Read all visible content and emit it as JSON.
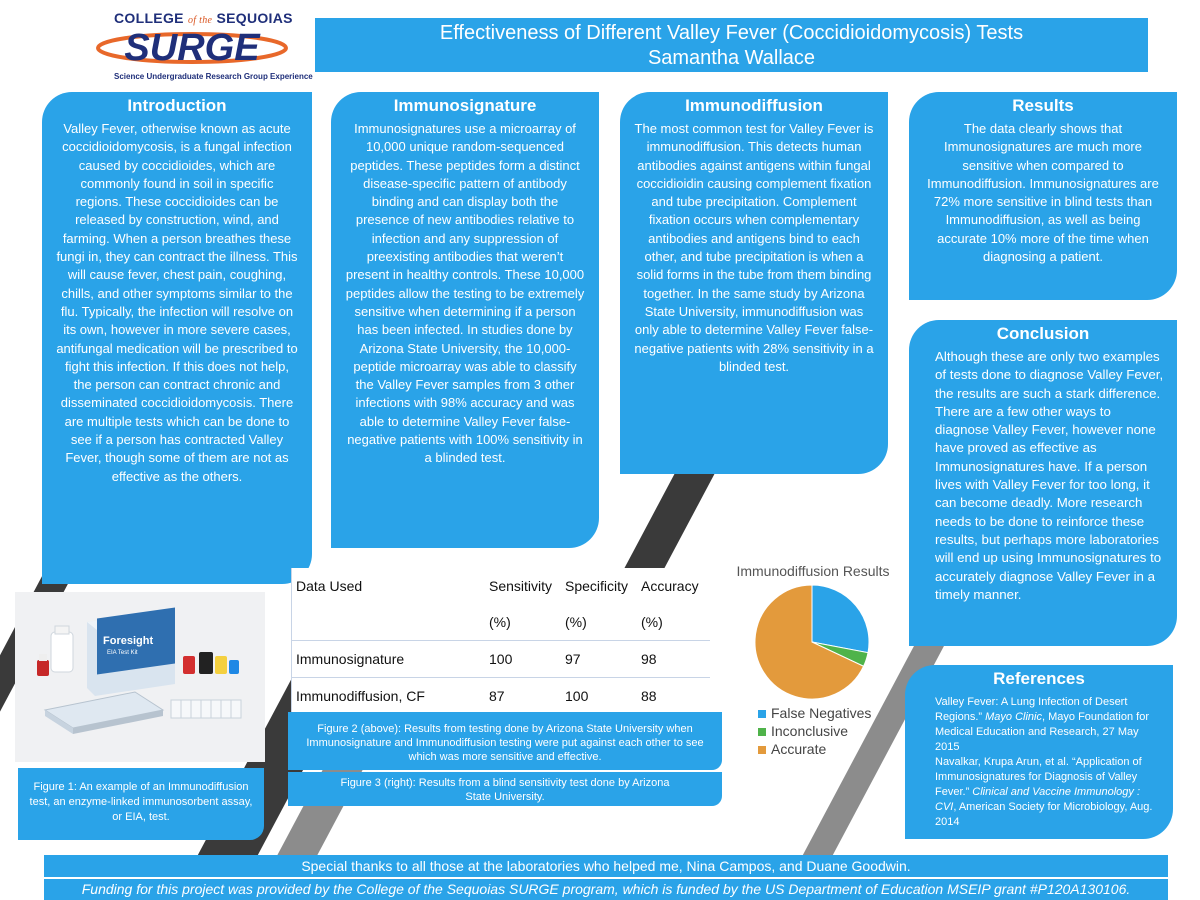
{
  "header": {
    "college": "COLLEGE",
    "college_of_the": "of the",
    "college_name": "SEQUOIAS",
    "program": "SURGE",
    "program_tagline": "Science Undergraduate Research Group Experience",
    "title": "Effectiveness of Different Valley Fever (Coccidioidomycosis) Tests",
    "author": "Samantha Wallace"
  },
  "sections": {
    "introduction": {
      "heading": "Introduction",
      "body": "Valley Fever, otherwise known as acute coccidioidomycosis,  is a fungal infection caused by coccidioides, which are commonly found in soil in specific regions. These coccidioides can be released by construction, wind, and farming. When a person breathes these fungi in, they can contract the illness. This will cause fever, chest pain, coughing, chills, and other symptoms similar to the flu. Typically, the infection will resolve on its own, however in more severe cases, antifungal medication will be prescribed to fight this infection. If this does not help, the person can contract chronic and disseminated coccidioidomycosis. There are multiple tests which can be done to see if a person has contracted Valley Fever, though some of them are not as effective as the others."
    },
    "immunosignature": {
      "heading": "Immunosignature",
      "body": "Immunosignatures use a microarray of 10,000 unique random-sequenced peptides. These peptides form a distinct disease-specific pattern of antibody binding and can display both the presence of new antibodies relative to infection and any suppression of preexisting antibodies that weren’t present in healthy controls. These 10,000 peptides allow the testing to be extremely sensitive when determining if a person has been infected. In studies done by Arizona State University, the 10,000-peptide microarray was able to classify the Valley Fever samples from 3 other infections with 98% accuracy and was able to determine Valley Fever false-negative patients with 100% sensitivity in a blinded test."
    },
    "immunodiffusion": {
      "heading": "Immunodiffusion",
      "body": "The most common test for Valley Fever is immunodiffusion. This detects human antibodies against antigens within fungal coccidioidin causing complement fixation and tube precipitation. Complement fixation occurs when complementary antibodies and antigens bind to each other, and tube precipitation is when a solid forms in the tube from them binding together. In the same study by Arizona State University, immunodiffusion was only able to determine Valley Fever false-negative patients with 28% sensitivity in a blinded test."
    },
    "results": {
      "heading": "Results",
      "body": "The data clearly shows that Immunosignatures are much more sensitive when compared to Immunodiffusion. Immunosignatures are 72% more sensitive in blind tests than Immunodiffusion, as well as being accurate 10% more of the time when diagnosing a patient."
    },
    "conclusion": {
      "heading": "Conclusion",
      "body": "Although these are only two examples of tests done to diagnose Valley Fever, the results are such a stark difference. There are a few other ways to diagnose Valley Fever, however none have proved as effective as Immunosignatures have. If a person lives with Valley Fever for too long, it can become deadly. More research needs to be done to reinforce these results, but perhaps more laboratories will end up using Immunosignatures to accurately diagnose Valley Fever in a timely manner."
    },
    "references": {
      "heading": "References",
      "ref1_pre": "Valley Fever: A Lung Infection of Desert Regions.” ",
      "ref1_ital": "Mayo Clinic",
      "ref1_post": ", Mayo Foundation for Medical Education and Research, 27 May 2015",
      "ref2_pre": "Navalkar, Krupa Arun, et al. “Application of Immunosignatures for Diagnosis of Valley Fever.” ",
      "ref2_ital": "Clinical and Vaccine Immunology : CVI",
      "ref2_post": ", American Society for Microbiology, Aug. 2014"
    }
  },
  "figure1": {
    "product_brand": "Foresight",
    "product_name": "EIA Test Kit",
    "caption": "Figure 1: An example of an Immunodiffusion test,  an enzyme-linked immunosorbent assay, or EIA, test."
  },
  "table": {
    "headers": [
      "Data Used",
      "Sensitivity",
      "Specificity",
      "Accuracy"
    ],
    "units": [
      "",
      "(%)",
      "(%)",
      "(%)"
    ],
    "rows": [
      [
        "Immunosignature",
        "100",
        "97",
        "98"
      ],
      [
        "Immunodiffusion, CF",
        "87",
        "100",
        "88"
      ]
    ]
  },
  "figure2": {
    "caption": "Figure 2 (above): Results from testing done by Arizona State University when Immunosignature and Immunodiffusion testing were put against each other to see which was more sensitive and effective."
  },
  "figure3": {
    "caption": "Figure 3 (right): Results from a blind sensitivity test done by Arizona State University."
  },
  "chart_data": {
    "type": "pie",
    "title": "Immunodiffusion Results",
    "categories": [
      "False Negatives",
      "Inconclusive",
      "Accurate"
    ],
    "values": [
      28,
      4,
      68
    ],
    "colors": [
      "#2aa3e8",
      "#4fb34a",
      "#e39a3c"
    ],
    "legend_position": "bottom"
  },
  "footer": {
    "thanks": "Special thanks to all those at the laboratories who helped me, Nina Campos, and Duane Goodwin.",
    "funding": "Funding for this project was provided by the College of the Sequoias SURGE program, which is funded by the US Department of Education MSEIP grant #P120A130106."
  }
}
